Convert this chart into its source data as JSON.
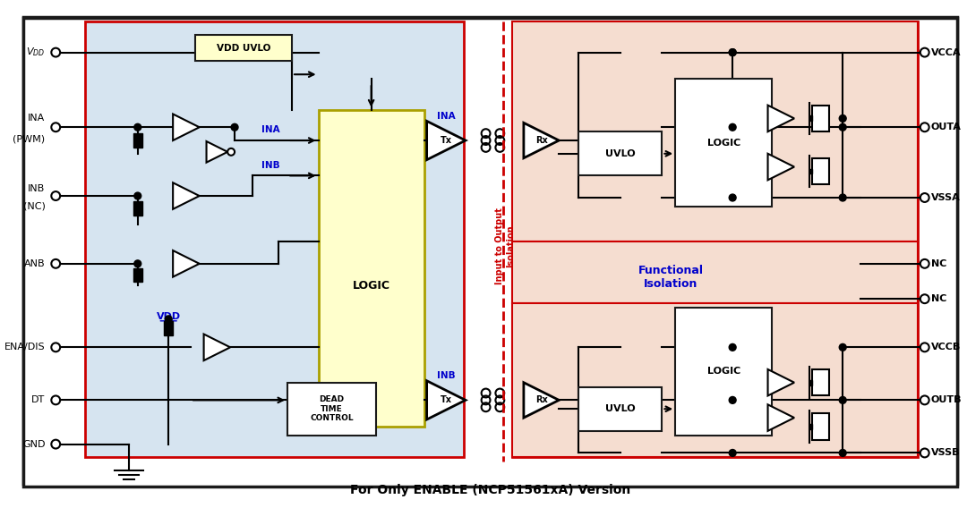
{
  "bg_color": "#ffffff",
  "outer_border_color": "#1a1a1a",
  "inner_left_bg": "#d6e4f0",
  "inner_right_bg": "#f5ddd0",
  "red_border": "#cc0000",
  "blue_text": "#0000cc",
  "yellow_bg": "#ffffcc",
  "caption": "For Only ENABLE (NCP51561xA) Version",
  "left_pins": [
    "V_DD",
    "INA\n(PWM)",
    "INB\n(NC)",
    "ANB",
    "ENA/DIS",
    "DT",
    "GND"
  ],
  "right_pins": [
    "VCCA",
    "OUTA",
    "VSSA",
    "NC",
    "NC",
    "VCCB",
    "OUTB",
    "VSSB"
  ]
}
